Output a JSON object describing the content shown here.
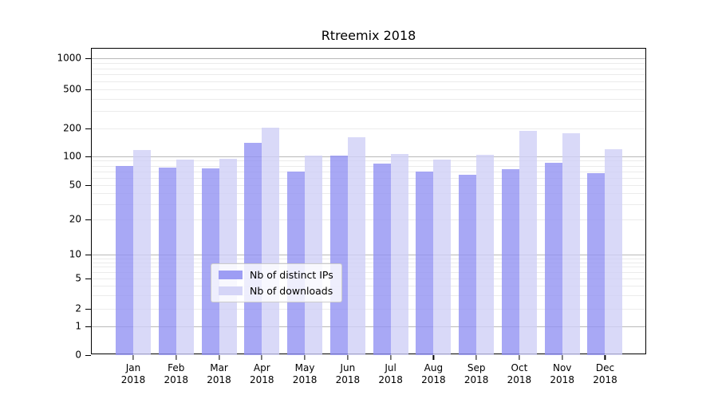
{
  "chart_data": {
    "type": "bar",
    "title": "Rtreemix 2018",
    "categories": [
      "Jan",
      "Feb",
      "Mar",
      "Apr",
      "May",
      "Jun",
      "Jul",
      "Aug",
      "Sep",
      "Oct",
      "Nov",
      "Dec"
    ],
    "x_year_label": "2018",
    "series": [
      {
        "name": "Nb of distinct IPs",
        "color": "#9292f3",
        "opacity": 0.8,
        "values": [
          80,
          77,
          75,
          140,
          70,
          103,
          84,
          70,
          64,
          74,
          85,
          67
        ]
      },
      {
        "name": "Nb of downloads",
        "color": "#d0d0f6",
        "opacity": 0.8,
        "values": [
          118,
          93,
          95,
          205,
          102,
          160,
          106,
          93,
          104,
          188,
          178,
          119
        ]
      }
    ],
    "y_ticks": [
      0,
      1,
      2,
      5,
      10,
      20,
      50,
      100,
      200,
      500,
      1000
    ],
    "y_scale": "symlog",
    "ylim": [
      0,
      1250
    ],
    "grid": true,
    "legend_position": "lower center"
  }
}
